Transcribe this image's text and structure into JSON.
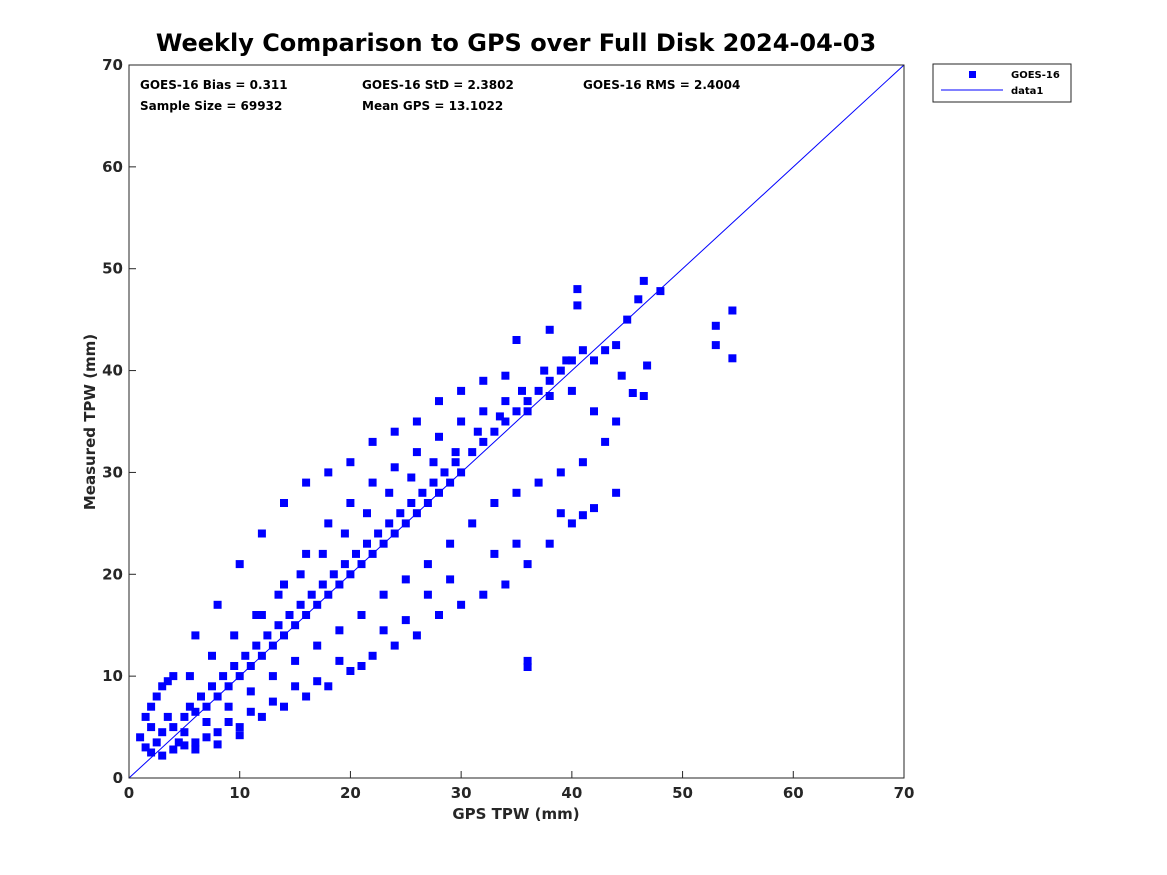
{
  "chart_data": {
    "type": "scatter",
    "title": "Weekly Comparison to GPS over Full Disk 2024-04-03",
    "xlabel": "GPS TPW (mm)",
    "ylabel": "Measured TPW (mm)",
    "xlim": [
      0,
      70
    ],
    "ylim": [
      0,
      70
    ],
    "xticks": [
      "0",
      "10",
      "20",
      "30",
      "40",
      "50",
      "60",
      "70"
    ],
    "yticks": [
      "0",
      "10",
      "20",
      "30",
      "40",
      "50",
      "60",
      "70"
    ],
    "grid": false,
    "legend_position": "outside-top-right",
    "stats": {
      "bias": "GOES-16 Bias = 0.311",
      "std": "GOES-16 StD = 2.3802",
      "rms": "GOES-16 RMS = 2.4004",
      "sample_size": "Sample Size = 69932",
      "mean_gps": "Mean GPS = 13.1022"
    },
    "series": [
      {
        "name": "GOES-16",
        "kind": "scatter",
        "color": "#0000ff",
        "marker": "square",
        "points": [
          [
            1,
            4
          ],
          [
            1.5,
            3
          ],
          [
            2,
            5
          ],
          [
            2.5,
            3.5
          ],
          [
            3,
            4.5
          ],
          [
            3.5,
            6
          ],
          [
            4,
            5
          ],
          [
            4.5,
            3.5
          ],
          [
            5,
            6
          ],
          [
            5.5,
            7
          ],
          [
            6,
            6.5
          ],
          [
            6.5,
            8
          ],
          [
            7,
            7
          ],
          [
            7.5,
            9
          ],
          [
            8,
            8
          ],
          [
            8.5,
            10
          ],
          [
            9,
            9
          ],
          [
            9.5,
            11
          ],
          [
            10,
            10
          ],
          [
            10.5,
            12
          ],
          [
            11,
            11
          ],
          [
            11.5,
            13
          ],
          [
            12,
            12
          ],
          [
            12.5,
            14
          ],
          [
            13,
            13
          ],
          [
            13.5,
            15
          ],
          [
            14,
            14
          ],
          [
            14.5,
            16
          ],
          [
            15,
            15
          ],
          [
            15.5,
            17
          ],
          [
            16,
            16
          ],
          [
            16.5,
            18
          ],
          [
            17,
            17
          ],
          [
            17.5,
            19
          ],
          [
            18,
            18
          ],
          [
            18.5,
            20
          ],
          [
            19,
            19
          ],
          [
            19.5,
            21
          ],
          [
            20,
            20
          ],
          [
            20.5,
            22
          ],
          [
            21,
            21
          ],
          [
            21.5,
            23
          ],
          [
            22,
            22
          ],
          [
            22.5,
            24
          ],
          [
            23,
            23
          ],
          [
            23.5,
            25
          ],
          [
            24,
            24
          ],
          [
            24.5,
            26
          ],
          [
            25,
            25
          ],
          [
            25.5,
            27
          ],
          [
            26,
            26
          ],
          [
            26.5,
            28
          ],
          [
            27,
            27
          ],
          [
            27.5,
            29
          ],
          [
            28,
            28
          ],
          [
            28.5,
            30
          ],
          [
            29,
            29
          ],
          [
            29.5,
            31
          ],
          [
            30,
            30
          ],
          [
            31,
            32
          ],
          [
            32,
            33
          ],
          [
            33,
            34
          ],
          [
            34,
            35
          ],
          [
            35,
            36
          ],
          [
            36,
            37
          ],
          [
            37,
            38
          ],
          [
            38,
            39
          ],
          [
            39,
            40
          ],
          [
            40,
            41
          ],
          [
            41,
            42
          ],
          [
            42,
            41
          ],
          [
            43,
            42
          ],
          [
            44,
            42.5
          ],
          [
            45,
            45
          ],
          [
            46,
            47
          ],
          [
            46.5,
            48.8
          ],
          [
            48,
            47.8
          ],
          [
            40.5,
            48
          ],
          [
            40.5,
            46.4
          ],
          [
            44.5,
            39.5
          ],
          [
            45.5,
            37.8
          ],
          [
            46.5,
            37.5
          ],
          [
            46.8,
            40.5
          ],
          [
            53,
            44.4
          ],
          [
            53,
            42.5
          ],
          [
            54.5,
            45.9
          ],
          [
            54.5,
            41.2
          ],
          [
            36,
            11.5
          ],
          [
            36,
            10.9
          ],
          [
            38,
            44
          ],
          [
            35,
            43
          ],
          [
            34,
            39.5
          ],
          [
            32,
            39
          ],
          [
            30,
            38
          ],
          [
            28,
            37
          ],
          [
            26,
            35
          ],
          [
            24,
            34
          ],
          [
            22,
            33
          ],
          [
            20,
            31
          ],
          [
            18,
            30
          ],
          [
            16,
            29
          ],
          [
            14,
            27
          ],
          [
            12,
            24
          ],
          [
            10,
            21
          ],
          [
            8,
            17
          ],
          [
            6,
            14
          ],
          [
            4,
            10
          ],
          [
            3,
            9
          ],
          [
            2,
            7
          ],
          [
            2,
            2.5
          ],
          [
            4,
            2.8
          ],
          [
            6,
            3.5
          ],
          [
            8,
            4.5
          ],
          [
            10,
            5
          ],
          [
            12,
            6
          ],
          [
            14,
            7
          ],
          [
            16,
            8
          ],
          [
            18,
            9
          ],
          [
            20,
            10.5
          ],
          [
            22,
            12
          ],
          [
            24,
            13
          ],
          [
            26,
            14
          ],
          [
            28,
            16
          ],
          [
            30,
            17
          ],
          [
            32,
            18
          ],
          [
            34,
            19
          ],
          [
            36,
            21
          ],
          [
            38,
            23
          ],
          [
            40,
            25
          ],
          [
            42,
            26.5
          ],
          [
            44,
            28
          ],
          [
            41,
            25.8
          ],
          [
            39,
            26
          ],
          [
            35,
            23
          ],
          [
            33,
            22
          ],
          [
            29,
            19.5
          ],
          [
            27,
            18
          ],
          [
            25,
            15.5
          ],
          [
            23,
            14.5
          ],
          [
            21,
            11
          ],
          [
            19,
            11.5
          ],
          [
            17,
            9.5
          ],
          [
            15,
            9
          ],
          [
            13,
            7.5
          ],
          [
            11,
            6.5
          ],
          [
            9,
            5.5
          ],
          [
            7,
            4
          ],
          [
            5,
            3.2
          ],
          [
            3,
            2.2
          ],
          [
            12,
            16
          ],
          [
            14,
            19
          ],
          [
            16,
            22
          ],
          [
            18,
            25
          ],
          [
            20,
            27
          ],
          [
            22,
            29
          ],
          [
            24,
            30.5
          ],
          [
            26,
            32
          ],
          [
            28,
            33.5
          ],
          [
            30,
            35
          ],
          [
            32,
            36
          ],
          [
            34,
            37
          ],
          [
            36,
            36
          ],
          [
            38,
            37.5
          ],
          [
            40,
            38
          ],
          [
            42,
            36
          ],
          [
            44,
            35
          ],
          [
            43,
            33
          ],
          [
            41,
            31
          ],
          [
            39,
            30
          ],
          [
            37,
            29
          ],
          [
            35,
            28
          ],
          [
            33,
            27
          ],
          [
            31,
            25
          ],
          [
            29,
            23
          ],
          [
            27,
            21
          ],
          [
            25,
            19.5
          ],
          [
            23,
            18
          ],
          [
            21,
            16
          ],
          [
            19,
            14.5
          ],
          [
            17,
            13
          ],
          [
            15,
            11.5
          ],
          [
            13,
            10
          ],
          [
            11,
            8.5
          ],
          [
            9,
            7
          ],
          [
            7,
            5.5
          ],
          [
            5,
            4.5
          ],
          [
            1.5,
            6
          ],
          [
            2.5,
            8
          ],
          [
            3.5,
            9.5
          ],
          [
            5.5,
            10
          ],
          [
            7.5,
            12
          ],
          [
            9.5,
            14
          ],
          [
            11.5,
            16
          ],
          [
            13.5,
            18
          ],
          [
            15.5,
            20
          ],
          [
            17.5,
            22
          ],
          [
            19.5,
            24
          ],
          [
            21.5,
            26
          ],
          [
            23.5,
            28
          ],
          [
            25.5,
            29.5
          ],
          [
            27.5,
            31
          ],
          [
            29.5,
            32
          ],
          [
            31.5,
            34
          ],
          [
            33.5,
            35.5
          ],
          [
            35.5,
            38
          ],
          [
            37.5,
            40
          ],
          [
            39.5,
            41
          ],
          [
            6,
            2.8
          ],
          [
            8,
            3.3
          ],
          [
            10,
            4.2
          ]
        ]
      },
      {
        "name": "data1",
        "kind": "line",
        "color": "#0000ff",
        "points": [
          [
            0,
            0
          ],
          [
            70,
            70
          ]
        ]
      }
    ]
  }
}
